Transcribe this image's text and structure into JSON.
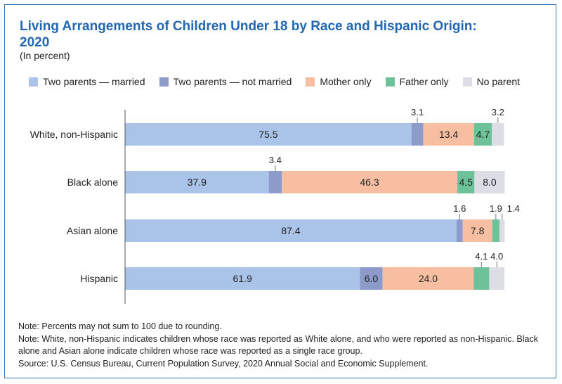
{
  "title": "Living Arrangements of Children Under 18 by Race and Hispanic Origin: 2020",
  "subtitle": "(In percent)",
  "colors": {
    "title": "#2167b2",
    "frame": "#3a73b5",
    "axis": "#555555",
    "text": "#222222"
  },
  "chart_data": {
    "type": "bar",
    "orientation": "horizontal",
    "stacked": true,
    "categories": [
      "White, non-Hispanic",
      "Black alone",
      "Asian alone",
      "Hispanic"
    ],
    "series": [
      {
        "name": "Two parents — married",
        "color": "#a9c4e8",
        "values": [
          75.5,
          37.9,
          87.4,
          61.9
        ],
        "labels": [
          "75.5",
          "37.9",
          "87.4",
          "61.9"
        ]
      },
      {
        "name": "Two parents — not married",
        "color": "#8c9bca",
        "values": [
          3.1,
          3.4,
          1.6,
          6.0
        ],
        "labels": [
          "3.1",
          "3.4",
          "1.6",
          "6.0"
        ]
      },
      {
        "name": "Mother only",
        "color": "#f8bea1",
        "values": [
          13.4,
          46.3,
          7.8,
          24.0
        ],
        "labels": [
          "13.4",
          "46.3",
          "7.8",
          "24.0"
        ]
      },
      {
        "name": "Father only",
        "color": "#6dc29a",
        "values": [
          4.7,
          4.5,
          1.9,
          4.1
        ],
        "labels": [
          "4.7",
          "4.5",
          "1.9",
          "4.1"
        ]
      },
      {
        "name": "No parent",
        "color": "#dcdde5",
        "values": [
          3.2,
          8.0,
          1.4,
          4.0
        ],
        "labels": [
          "3.2",
          "8.0",
          "1.4",
          "4.0"
        ]
      }
    ],
    "xlim": [
      0,
      100
    ],
    "grid": false,
    "legend_position": "top"
  },
  "notes": [
    "Note: Percents may not sum to 100 due to rounding.",
    "Note: White, non-Hispanic indicates children whose race was reported as White alone, and who were reported as non-Hispanic. Black alone and Asian alone indicate children whose race was reported as a single race group.",
    "Source: U.S. Census Bureau, Current Population Survey, 2020 Annual Social and Economic Supplement."
  ]
}
